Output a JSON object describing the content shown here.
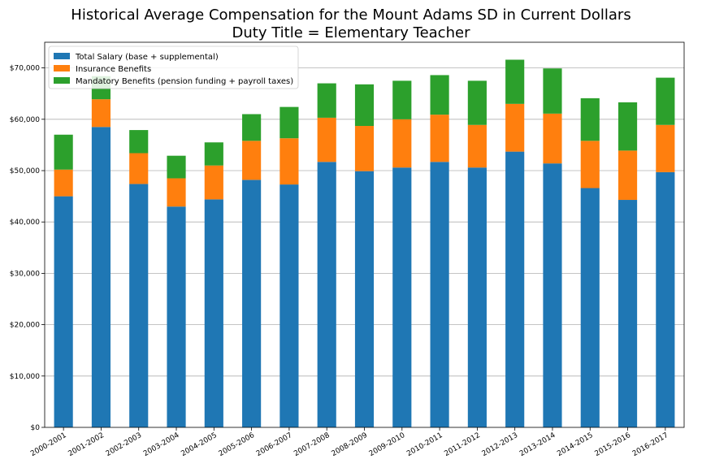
{
  "chart_data": {
    "type": "bar",
    "stacked": true,
    "title": [
      "Historical Average Compensation for the Mount Adams SD in Current Dollars",
      "Duty Title = Elementary Teacher"
    ],
    "xlabel": "",
    "ylabel": "",
    "ylim": [
      0,
      75000
    ],
    "y_ticks": [
      0,
      10000,
      20000,
      30000,
      40000,
      50000,
      60000,
      70000
    ],
    "y_tick_labels": [
      "$0",
      "$10,000",
      "$20,000",
      "$30,000",
      "$40,000",
      "$50,000",
      "$60,000",
      "$70,000"
    ],
    "grid": "horizontal",
    "legend_position": "top-left",
    "categories": [
      "2000-2001",
      "2001-2002",
      "2002-2003",
      "2003-2004",
      "2004-2005",
      "2005-2006",
      "2006-2007",
      "2007-2008",
      "2008-2009",
      "2009-2010",
      "2010-2011",
      "2011-2012",
      "2012-2013",
      "2013-2014",
      "2014-2015",
      "2015-2016",
      "2016-2017"
    ],
    "series": [
      {
        "name": "Total Salary (base + supplemental)",
        "color": "#1f77b4",
        "values": [
          45000,
          58500,
          47400,
          43000,
          44400,
          48200,
          47300,
          51700,
          49900,
          50600,
          51700,
          50600,
          53700,
          51400,
          46600,
          44300,
          49700
        ]
      },
      {
        "name": "Insurance Benefits",
        "color": "#ff7f0e",
        "values": [
          5200,
          5400,
          6000,
          5500,
          6600,
          7600,
          9000,
          8600,
          8800,
          9400,
          9200,
          8300,
          9300,
          9700,
          9200,
          9600,
          9200
        ]
      },
      {
        "name": "Mandatory Benefits (pension funding + payroll taxes)",
        "color": "#2ca02c",
        "values": [
          6800,
          4500,
          4500,
          4400,
          4500,
          5200,
          6100,
          6700,
          8100,
          7500,
          7700,
          8600,
          8600,
          8800,
          8300,
          9400,
          9200
        ]
      }
    ]
  }
}
